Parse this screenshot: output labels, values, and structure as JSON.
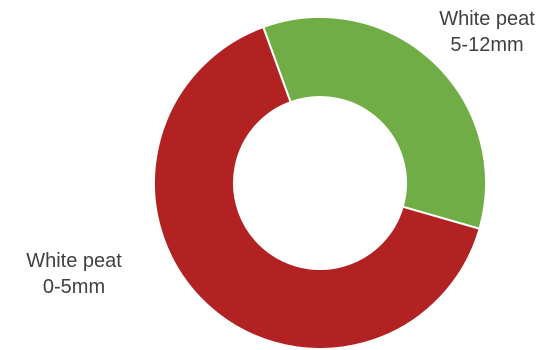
{
  "chart_data": {
    "type": "pie",
    "variant": "donut",
    "title": "",
    "series": [
      {
        "name": "",
        "slices": [
          {
            "label_line1": "White peat",
            "label_line2": "5-12mm",
            "value": 35,
            "color": "#70ad47"
          },
          {
            "label_line1": "White peat",
            "label_line2": "0-5mm",
            "value": 65,
            "color": "#b22222"
          }
        ]
      }
    ],
    "legend": "none",
    "start_angle_deg": -20
  }
}
